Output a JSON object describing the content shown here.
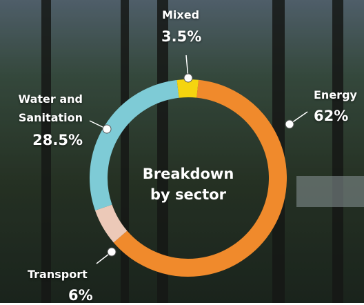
{
  "chart_data": {
    "type": "donut",
    "title": "Breakdown by sector",
    "categories": [
      "Energy",
      "Transport",
      "Water and Sanitation",
      "Mixed"
    ],
    "values": [
      62,
      6,
      28.5,
      3.5
    ],
    "value_labels": [
      "62%",
      "6%",
      "28.5%",
      "3.5%"
    ],
    "colors": [
      "#f08a2c",
      "#ecc9b8",
      "#7ecbd6",
      "#f5d40f"
    ]
  }
}
